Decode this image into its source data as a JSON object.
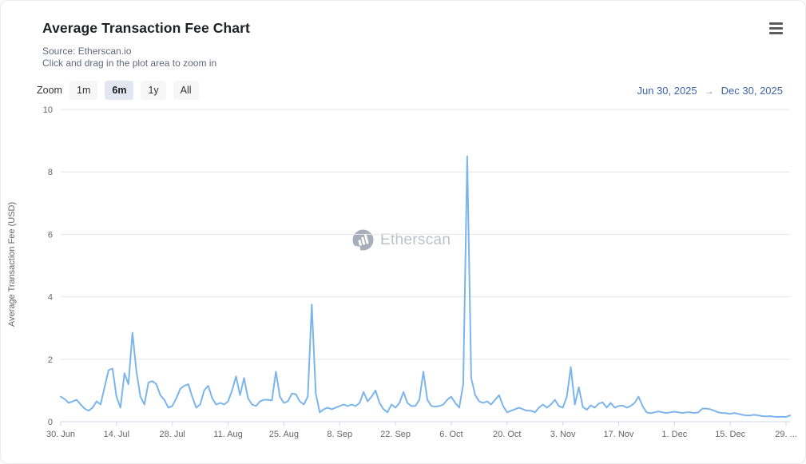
{
  "header": {
    "title": "Average Transaction Fee Chart",
    "source_line": "Source: Etherscan.io",
    "hint_line": "Click and drag in the plot area to zoom in"
  },
  "toolbar": {
    "zoom_label": "Zoom",
    "buttons": [
      {
        "label": "1m",
        "selected": false
      },
      {
        "label": "6m",
        "selected": true
      },
      {
        "label": "1y",
        "selected": false
      },
      {
        "label": "All",
        "selected": false
      }
    ],
    "range": {
      "from": "Jun 30, 2025",
      "separator": "→",
      "to": "Dec 30, 2025"
    }
  },
  "watermark": {
    "text": "Etherscan",
    "icon": "etherscan-logo-icon"
  },
  "colors": {
    "line": "#7cb5ec",
    "grid": "#e6e6e6",
    "axis": "#ccd6eb",
    "axis_text": "#666666",
    "range_text": "#3d64ad"
  },
  "chart_data": {
    "type": "line",
    "title": "Average Transaction Fee Chart",
    "xlabel": "",
    "ylabel": "Average Transaction Fee (USD)",
    "ylim": [
      0,
      10
    ],
    "yticks": [
      0,
      2,
      4,
      6,
      8,
      10
    ],
    "grid": true,
    "legend": "none",
    "xticks": [
      "30. Jun",
      "14. Jul",
      "28. Jul",
      "11. Aug",
      "25. Aug",
      "8. Sep",
      "22. Sep",
      "6. Oct",
      "20. Oct",
      "3. Nov",
      "17. Nov",
      "1. Dec",
      "15. Dec",
      "29. ..."
    ],
    "xtick_day_index": [
      0,
      14,
      28,
      42,
      56,
      70,
      84,
      98,
      112,
      126,
      140,
      154,
      168,
      182
    ],
    "dates": [
      "Jun 30",
      "Jul 1",
      "Jul 2",
      "Jul 3",
      "Jul 4",
      "Jul 5",
      "Jul 6",
      "Jul 7",
      "Jul 8",
      "Jul 9",
      "Jul 10",
      "Jul 11",
      "Jul 12",
      "Jul 13",
      "Jul 14",
      "Jul 15",
      "Jul 16",
      "Jul 17",
      "Jul 18",
      "Jul 19",
      "Jul 20",
      "Jul 21",
      "Jul 22",
      "Jul 23",
      "Jul 24",
      "Jul 25",
      "Jul 26",
      "Jul 27",
      "Jul 28",
      "Jul 29",
      "Jul 30",
      "Jul 31",
      "Aug 1",
      "Aug 2",
      "Aug 3",
      "Aug 4",
      "Aug 5",
      "Aug 6",
      "Aug 7",
      "Aug 8",
      "Aug 9",
      "Aug 10",
      "Aug 11",
      "Aug 12",
      "Aug 13",
      "Aug 14",
      "Aug 15",
      "Aug 16",
      "Aug 17",
      "Aug 18",
      "Aug 19",
      "Aug 20",
      "Aug 21",
      "Aug 22",
      "Aug 23",
      "Aug 24",
      "Aug 25",
      "Aug 26",
      "Aug 27",
      "Aug 28",
      "Aug 29",
      "Aug 30",
      "Aug 31",
      "Sep 1",
      "Sep 2",
      "Sep 3",
      "Sep 4",
      "Sep 5",
      "Sep 6",
      "Sep 7",
      "Sep 8",
      "Sep 9",
      "Sep 10",
      "Sep 11",
      "Sep 12",
      "Sep 13",
      "Sep 14",
      "Sep 15",
      "Sep 16",
      "Sep 17",
      "Sep 18",
      "Sep 19",
      "Sep 20",
      "Sep 21",
      "Sep 22",
      "Sep 23",
      "Sep 24",
      "Sep 25",
      "Sep 26",
      "Sep 27",
      "Sep 28",
      "Sep 29",
      "Sep 30",
      "Oct 1",
      "Oct 2",
      "Oct 3",
      "Oct 4",
      "Oct 5",
      "Oct 6",
      "Oct 7",
      "Oct 8",
      "Oct 9",
      "Oct 10",
      "Oct 11",
      "Oct 12",
      "Oct 13",
      "Oct 14",
      "Oct 15",
      "Oct 16",
      "Oct 17",
      "Oct 18",
      "Oct 19",
      "Oct 20",
      "Oct 21",
      "Oct 22",
      "Oct 23",
      "Oct 24",
      "Oct 25",
      "Oct 26",
      "Oct 27",
      "Oct 28",
      "Oct 29",
      "Oct 30",
      "Oct 31",
      "Nov 1",
      "Nov 2",
      "Nov 3",
      "Nov 4",
      "Nov 5",
      "Nov 6",
      "Nov 7",
      "Nov 8",
      "Nov 9",
      "Nov 10",
      "Nov 11",
      "Nov 12",
      "Nov 13",
      "Nov 14",
      "Nov 15",
      "Nov 16",
      "Nov 17",
      "Nov 18",
      "Nov 19",
      "Nov 20",
      "Nov 21",
      "Nov 22",
      "Nov 23",
      "Nov 24",
      "Nov 25",
      "Nov 26",
      "Nov 27",
      "Nov 28",
      "Nov 29",
      "Nov 30",
      "Dec 1",
      "Dec 2",
      "Dec 3",
      "Dec 4",
      "Dec 5",
      "Dec 6",
      "Dec 7",
      "Dec 8",
      "Dec 9",
      "Dec 10",
      "Dec 11",
      "Dec 12",
      "Dec 13",
      "Dec 14",
      "Dec 15",
      "Dec 16",
      "Dec 17",
      "Dec 18",
      "Dec 19",
      "Dec 20",
      "Dec 21",
      "Dec 22",
      "Dec 23",
      "Dec 24",
      "Dec 25",
      "Dec 26",
      "Dec 27",
      "Dec 28",
      "Dec 29",
      "Dec 30"
    ],
    "values": [
      0.8,
      0.72,
      0.6,
      0.65,
      0.7,
      0.55,
      0.42,
      0.35,
      0.45,
      0.65,
      0.55,
      1.1,
      1.65,
      1.7,
      0.8,
      0.45,
      1.55,
      1.2,
      2.85,
      1.6,
      0.8,
      0.55,
      1.25,
      1.3,
      1.2,
      0.85,
      0.7,
      0.45,
      0.5,
      0.75,
      1.05,
      1.15,
      1.2,
      0.8,
      0.45,
      0.55,
      1.0,
      1.15,
      0.75,
      0.55,
      0.6,
      0.55,
      0.65,
      1.0,
      1.45,
      0.85,
      1.4,
      0.75,
      0.55,
      0.5,
      0.65,
      0.7,
      0.7,
      0.68,
      1.6,
      0.8,
      0.6,
      0.65,
      0.9,
      0.88,
      0.65,
      0.55,
      0.8,
      3.75,
      0.9,
      0.3,
      0.4,
      0.45,
      0.4,
      0.45,
      0.5,
      0.55,
      0.5,
      0.55,
      0.5,
      0.6,
      0.95,
      0.65,
      0.8,
      1.0,
      0.6,
      0.4,
      0.3,
      0.55,
      0.45,
      0.6,
      0.95,
      0.6,
      0.5,
      0.5,
      0.7,
      1.6,
      0.7,
      0.5,
      0.48,
      0.5,
      0.55,
      0.7,
      0.8,
      0.6,
      0.45,
      1.2,
      8.5,
      1.4,
      0.85,
      0.65,
      0.6,
      0.65,
      0.55,
      0.7,
      0.85,
      0.5,
      0.3,
      0.35,
      0.4,
      0.45,
      0.4,
      0.35,
      0.35,
      0.3,
      0.45,
      0.55,
      0.45,
      0.55,
      0.7,
      0.5,
      0.45,
      0.8,
      1.75,
      0.55,
      1.1,
      0.47,
      0.38,
      0.52,
      0.45,
      0.58,
      0.62,
      0.45,
      0.6,
      0.45,
      0.5,
      0.52,
      0.45,
      0.5,
      0.6,
      0.8,
      0.5,
      0.3,
      0.27,
      0.3,
      0.33,
      0.3,
      0.28,
      0.3,
      0.32,
      0.3,
      0.28,
      0.3,
      0.3,
      0.28,
      0.3,
      0.42,
      0.42,
      0.4,
      0.35,
      0.3,
      0.28,
      0.27,
      0.25,
      0.28,
      0.25,
      0.22,
      0.2,
      0.2,
      0.22,
      0.2,
      0.18,
      0.17,
      0.18,
      0.16,
      0.15,
      0.16,
      0.15,
      0.2
    ]
  }
}
